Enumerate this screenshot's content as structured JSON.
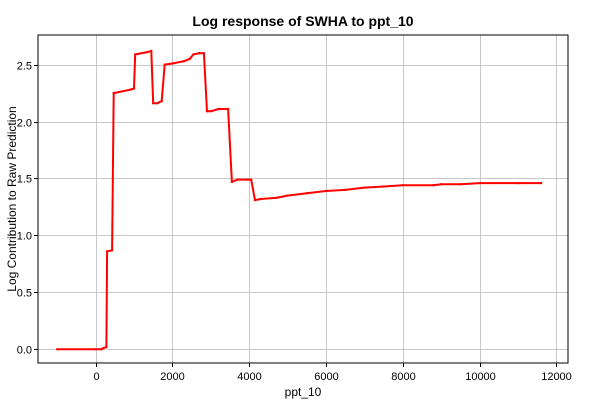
{
  "chart_data": {
    "type": "line",
    "title": "Log response of SWHA to ppt_10",
    "xlabel": "ppt_10",
    "ylabel": "Log Contribution to Raw Prediction",
    "xlim": [
      -1500,
      12300
    ],
    "ylim": [
      -0.12,
      2.76
    ],
    "x_ticks": [
      0,
      2000,
      4000,
      6000,
      8000,
      10000,
      12000
    ],
    "y_ticks": [
      0.0,
      0.5,
      1.0,
      1.5,
      2.0,
      2.5
    ],
    "x_tick_labels": [
      "0",
      "2000",
      "4000",
      "6000",
      "8000",
      "10000",
      "12000"
    ],
    "y_tick_labels": [
      "0.0",
      "0.5",
      "1.0",
      "1.5",
      "2.0",
      "2.5"
    ],
    "grid": true,
    "line_color": "#ff0000",
    "series": [
      {
        "points": [
          [
            -1000,
            0.0
          ],
          [
            0,
            0.0
          ],
          [
            150,
            0.0
          ],
          [
            200,
            0.01
          ],
          [
            280,
            0.02
          ],
          [
            300,
            0.86
          ],
          [
            430,
            0.87
          ],
          [
            470,
            2.25
          ],
          [
            900,
            2.28
          ],
          [
            1000,
            2.29
          ],
          [
            1030,
            2.59
          ],
          [
            1350,
            2.61
          ],
          [
            1450,
            2.62
          ],
          [
            1500,
            2.16
          ],
          [
            1600,
            2.16
          ],
          [
            1720,
            2.18
          ],
          [
            1800,
            2.5
          ],
          [
            2000,
            2.51
          ],
          [
            2300,
            2.53
          ],
          [
            2450,
            2.55
          ],
          [
            2550,
            2.59
          ],
          [
            2700,
            2.6
          ],
          [
            2820,
            2.6
          ],
          [
            2900,
            2.09
          ],
          [
            3000,
            2.09
          ],
          [
            3200,
            2.11
          ],
          [
            3450,
            2.11
          ],
          [
            3550,
            1.47
          ],
          [
            3700,
            1.49
          ],
          [
            3950,
            1.49
          ],
          [
            4050,
            1.49
          ],
          [
            4150,
            1.31
          ],
          [
            4300,
            1.32
          ],
          [
            4700,
            1.33
          ],
          [
            5000,
            1.35
          ],
          [
            5500,
            1.37
          ],
          [
            6000,
            1.39
          ],
          [
            6500,
            1.4
          ],
          [
            7000,
            1.42
          ],
          [
            7500,
            1.43
          ],
          [
            8000,
            1.44
          ],
          [
            8800,
            1.44
          ],
          [
            9000,
            1.45
          ],
          [
            9500,
            1.45
          ],
          [
            10000,
            1.46
          ],
          [
            11000,
            1.46
          ],
          [
            11600,
            1.46
          ]
        ]
      }
    ]
  }
}
